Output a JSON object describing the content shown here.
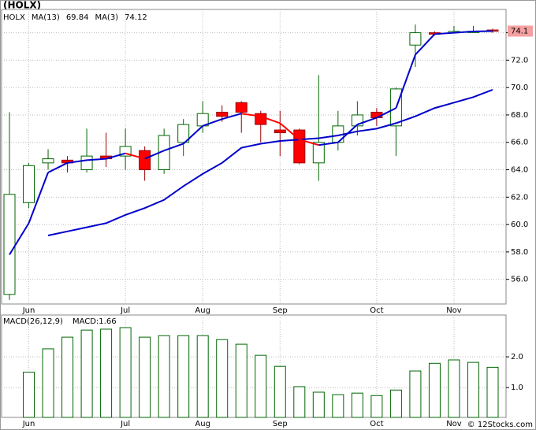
{
  "chart_data": [
    {
      "type": "candlestick",
      "title": "(HOLX)",
      "ticker": "HOLX",
      "categories": [
        null,
        "Jun",
        null,
        null,
        null,
        null,
        "Jul",
        null,
        null,
        null,
        "Aug",
        null,
        null,
        null,
        "Sep",
        null,
        null,
        null,
        null,
        "Oct",
        null,
        null,
        null,
        "Nov",
        null,
        null
      ],
      "open": [
        54.9,
        61.6,
        64.5,
        64.7,
        64.0,
        65.0,
        65.0,
        65.4,
        64.0,
        66.0,
        67.2,
        68.2,
        68.9,
        68.1,
        66.9,
        66.9,
        64.5,
        66.0,
        67.2,
        68.2,
        67.2,
        73.1,
        74.0,
        74.0,
        74.1,
        74.2
      ],
      "high": [
        68.2,
        64.5,
        65.5,
        65.0,
        67.0,
        66.7,
        67.0,
        65.7,
        67.0,
        67.7,
        69.0,
        68.7,
        69.0,
        68.3,
        68.3,
        67.0,
        70.9,
        68.3,
        69.0,
        68.5,
        70.0,
        74.6,
        74.1,
        74.5,
        74.5,
        74.3
      ],
      "low": [
        54.5,
        61.2,
        64.0,
        63.8,
        63.8,
        64.2,
        64.0,
        63.2,
        63.7,
        65.0,
        66.7,
        67.5,
        66.7,
        66.0,
        65.0,
        64.4,
        63.2,
        65.4,
        66.5,
        67.2,
        65.0,
        71.5,
        73.8,
        74.0,
        74.0,
        74.0
      ],
      "close": [
        62.2,
        64.3,
        64.8,
        64.5,
        65.0,
        64.8,
        65.7,
        64.0,
        66.5,
        67.3,
        68.1,
        67.9,
        68.2,
        67.3,
        66.7,
        64.5,
        66.0,
        67.2,
        68.0,
        67.8,
        69.9,
        74.0,
        73.9,
        74.1,
        74.1,
        74.12
      ],
      "last_label": "74.1",
      "up_color": "#ffffff",
      "up_stroke": "#006600",
      "down_color": "#ff0000",
      "down_stroke": "#990000",
      "series": [
        {
          "name": "MA(13)",
          "color": "#0000cc",
          "values": [
            null,
            null,
            59.2,
            59.5,
            59.8,
            60.1,
            60.7,
            61.2,
            61.8,
            62.8,
            63.7,
            64.5,
            65.6,
            65.9,
            66.1,
            66.2,
            66.3,
            66.5,
            66.8,
            67.0,
            67.4,
            67.9,
            68.5,
            68.9,
            69.3,
            69.84
          ]
        },
        {
          "name": "MA(3)",
          "color": "#0000cc",
          "down_color": "#ff0000",
          "values": [
            57.8,
            60.1,
            63.8,
            64.5,
            64.7,
            64.8,
            65.2,
            64.8,
            65.4,
            65.9,
            67.2,
            67.7,
            68.1,
            67.9,
            67.4,
            66.2,
            65.8,
            66.0,
            67.3,
            67.8,
            68.5,
            72.4,
            73.9,
            74.0,
            74.1,
            74.12
          ]
        }
      ],
      "ylim": [
        54.2,
        75.7
      ],
      "yticks": [
        {
          "value": 56,
          "label": "56.0"
        },
        {
          "value": 58,
          "label": "58.0"
        },
        {
          "value": 60,
          "label": "60.0"
        },
        {
          "value": 62,
          "label": "62.0"
        },
        {
          "value": 64,
          "label": "64.0"
        },
        {
          "value": 66,
          "label": "66.0"
        },
        {
          "value": 68,
          "label": "68.0"
        },
        {
          "value": 70,
          "label": "70.0"
        },
        {
          "value": 72,
          "label": "72.0"
        },
        {
          "value": 74,
          "label": "74.0"
        }
      ],
      "grid": true
    },
    {
      "type": "bar",
      "title": "MACD(26,12,9)",
      "legend_label": "MACD:1.66",
      "categories": [
        null,
        "Jun",
        null,
        null,
        null,
        null,
        "Jul",
        null,
        null,
        null,
        "Aug",
        null,
        null,
        null,
        "Sep",
        null,
        null,
        null,
        null,
        "Oct",
        null,
        null,
        null,
        "Nov",
        null,
        null
      ],
      "values": [
        null,
        1.5,
        2.26,
        2.64,
        2.87,
        2.9,
        2.95,
        2.64,
        2.69,
        2.69,
        2.69,
        2.56,
        2.41,
        2.05,
        1.69,
        1.03,
        0.85,
        0.77,
        0.82,
        0.74,
        0.92,
        1.54,
        1.79,
        1.9,
        1.82,
        1.66
      ],
      "color": "#ffffff",
      "stroke": "#006600",
      "ylim": [
        0.03,
        3.36
      ],
      "yticks": [
        {
          "value": 1,
          "label": "1.0"
        },
        {
          "value": 2,
          "label": "2.0"
        }
      ],
      "grid": true
    },
    {
      "type": "footer",
      "title": "© 12Stocks.com"
    }
  ]
}
